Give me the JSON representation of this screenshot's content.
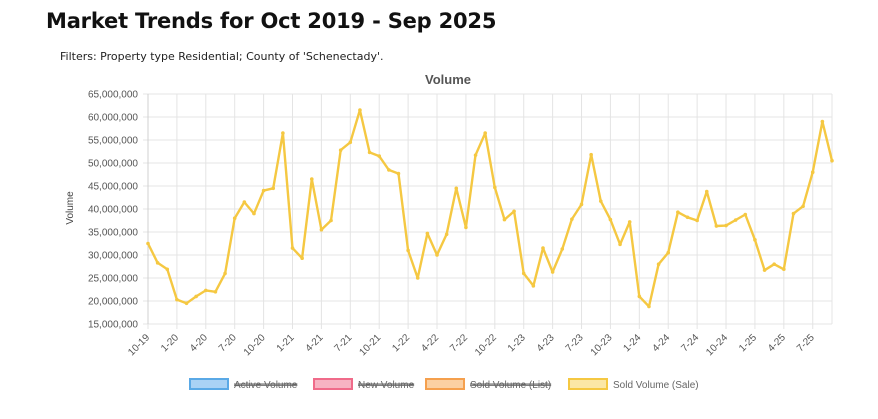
{
  "page": {
    "title": "Market Trends for Oct 2019 - Sep 2025",
    "filters": "Filters: Property type Residential; County of 'Schenectady'."
  },
  "chart_data": {
    "type": "line",
    "title": "Volume",
    "xlabel": "",
    "ylabel": "Volume",
    "ylim": [
      15000000,
      65000000
    ],
    "yticks": [
      "15,000,000",
      "20,000,000",
      "25,000,000",
      "30,000,000",
      "35,000,000",
      "40,000,000",
      "45,000,000",
      "50,000,000",
      "55,000,000",
      "60,000,000",
      "65,000,000"
    ],
    "grid": true,
    "legend_position": "bottom-center",
    "legend": [
      {
        "name": "Active Volume",
        "color": "#5aa9e6",
        "fill": "#a9d2f5",
        "hidden": true
      },
      {
        "name": "New Volume",
        "color": "#f06b8a",
        "fill": "#f7b3c3",
        "hidden": true
      },
      {
        "name": "Sold Volume (List)",
        "color": "#f5a04e",
        "fill": "#fbd0a2",
        "hidden": true
      },
      {
        "name": "Sold Volume (Sale)",
        "color": "#f5c842",
        "fill": "#fbe7a6",
        "hidden": false
      }
    ],
    "x": [
      "10-19",
      "11-19",
      "12-19",
      "1-20",
      "2-20",
      "3-20",
      "4-20",
      "5-20",
      "6-20",
      "7-20",
      "8-20",
      "9-20",
      "10-20",
      "11-20",
      "12-20",
      "1-21",
      "2-21",
      "3-21",
      "4-21",
      "5-21",
      "6-21",
      "7-21",
      "8-21",
      "9-21",
      "10-21",
      "11-21",
      "12-21",
      "1-22",
      "2-22",
      "3-22",
      "4-22",
      "5-22",
      "6-22",
      "7-22",
      "8-22",
      "9-22",
      "10-22",
      "11-22",
      "12-22",
      "1-23",
      "2-23",
      "3-23",
      "4-23",
      "5-23",
      "6-23",
      "7-23",
      "8-23",
      "9-23",
      "10-23",
      "11-23",
      "12-23",
      "1-24",
      "2-24",
      "3-24",
      "4-24",
      "5-24",
      "6-24",
      "7-24",
      "8-24",
      "9-24",
      "10-24",
      "11-24",
      "12-24",
      "1-25",
      "2-25",
      "3-25",
      "4-25",
      "5-25",
      "6-25",
      "7-25",
      "8-25",
      "9-25"
    ],
    "xtick_labels": [
      "10-19",
      "1-20",
      "4-20",
      "7-20",
      "10-20",
      "1-21",
      "4-21",
      "7-21",
      "10-21",
      "1-22",
      "4-22",
      "7-22",
      "10-22",
      "1-23",
      "4-23",
      "7-23",
      "10-23",
      "1-24",
      "4-24",
      "7-24",
      "10-24",
      "1-25",
      "4-25",
      "7-25"
    ],
    "series": [
      {
        "name": "Sold Volume (Sale)",
        "color": "#f5c842",
        "values": [
          32500000,
          28300000,
          26900000,
          20300000,
          19500000,
          21000000,
          22300000,
          22000000,
          26000000,
          38000000,
          41500000,
          39000000,
          44000000,
          44500000,
          56500000,
          31500000,
          29300000,
          46500000,
          35500000,
          37500000,
          52800000,
          54500000,
          61500000,
          52300000,
          51500000,
          48500000,
          47700000,
          31000000,
          25000000,
          34700000,
          30000000,
          34500000,
          44500000,
          36000000,
          51700000,
          56500000,
          44700000,
          37700000,
          39500000,
          26000000,
          23300000,
          31500000,
          26300000,
          31300000,
          37800000,
          41000000,
          51800000,
          41700000,
          37700000,
          32300000,
          37200000,
          21000000,
          18800000,
          28000000,
          30500000,
          39300000,
          38200000,
          37500000,
          43800000,
          36300000,
          36400000,
          37600000,
          38800000,
          33300000,
          26700000,
          28000000,
          26900000,
          39000000,
          40600000,
          48000000,
          59000000,
          50500000
        ]
      }
    ]
  }
}
